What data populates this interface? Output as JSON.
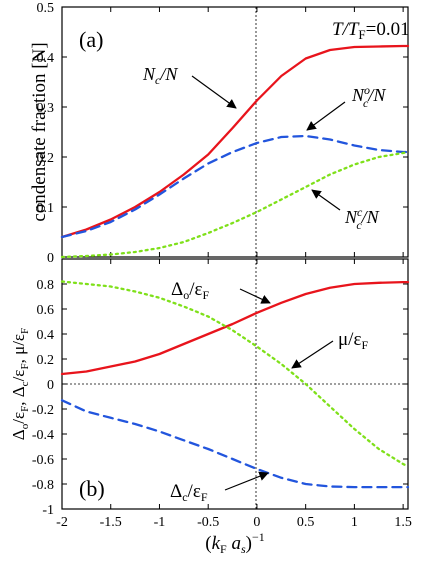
{
  "figure": {
    "xlabel": "(k_F a_s)^-1",
    "x_ticks": [
      "-2",
      "-1.5",
      "-1",
      "-0.5",
      "0",
      "0.5",
      "1",
      "1.5"
    ]
  },
  "chart_data": [
    {
      "type": "line",
      "panel_label": "(a)",
      "annotation": "T/T_F=0.01",
      "ylabel": "condensate fraction [N]",
      "xlim": [
        -2,
        1.55
      ],
      "ylim": [
        0,
        0.5
      ],
      "y_ticks": [
        "0",
        "0.1",
        "0.2",
        "0.3",
        "0.4",
        "0.5"
      ],
      "grid": false,
      "series": [
        {
          "name": "N_c/N",
          "color": "#e8141c",
          "dash": "solid",
          "x": [
            -2,
            -1.75,
            -1.5,
            -1.25,
            -1,
            -0.75,
            -0.5,
            -0.25,
            0,
            0.25,
            0.5,
            0.75,
            1,
            1.25,
            1.5,
            1.55
          ],
          "y": [
            0.04,
            0.055,
            0.075,
            0.1,
            0.13,
            0.165,
            0.205,
            0.258,
            0.313,
            0.362,
            0.397,
            0.414,
            0.42,
            0.421,
            0.422,
            0.422
          ]
        },
        {
          "name": "N_c^o/N",
          "color": "#2255dd",
          "dash": "dashed",
          "x": [
            -2,
            -1.75,
            -1.5,
            -1.25,
            -1,
            -0.75,
            -0.5,
            -0.25,
            0,
            0.25,
            0.5,
            0.75,
            1,
            1.25,
            1.5,
            1.55
          ],
          "y": [
            0.04,
            0.052,
            0.07,
            0.095,
            0.125,
            0.157,
            0.187,
            0.21,
            0.228,
            0.24,
            0.242,
            0.235,
            0.223,
            0.214,
            0.21,
            0.21
          ]
        },
        {
          "name": "N_c^c/N",
          "color": "#7fe01a",
          "dash": "dotted",
          "x": [
            -2,
            -1.75,
            -1.5,
            -1.25,
            -1,
            -0.75,
            -0.5,
            -0.25,
            0,
            0.25,
            0.5,
            0.75,
            1,
            1.25,
            1.5,
            1.55
          ],
          "y": [
            0,
            0.002,
            0.005,
            0.01,
            0.018,
            0.03,
            0.048,
            0.068,
            0.09,
            0.115,
            0.14,
            0.165,
            0.185,
            0.2,
            0.208,
            0.21
          ]
        }
      ],
      "labels": {
        "nc": "N_c/N",
        "nco": "N_c^o/N",
        "ncc": "N_c^c/N"
      }
    },
    {
      "type": "line",
      "panel_label": "(b)",
      "ylabel": "Δ_o/ε_F, Δ_c/ε_F, μ/ε_F",
      "xlim": [
        -2,
        1.55
      ],
      "ylim": [
        -1,
        1
      ],
      "y_ticks": [
        "-1",
        "-0.8",
        "-0.6",
        "-0.4",
        "-0.2",
        "0",
        "0.2",
        "0.4",
        "0.6",
        "0.8"
      ],
      "grid": false,
      "series": [
        {
          "name": "Δ_o/ε_F",
          "color": "#e8141c",
          "dash": "solid",
          "x": [
            -2,
            -1.75,
            -1.5,
            -1.25,
            -1,
            -0.75,
            -0.5,
            -0.25,
            0,
            0.25,
            0.5,
            0.75,
            1,
            1.25,
            1.5,
            1.55
          ],
          "y": [
            0.08,
            0.1,
            0.14,
            0.18,
            0.24,
            0.32,
            0.4,
            0.48,
            0.57,
            0.65,
            0.72,
            0.77,
            0.8,
            0.81,
            0.815,
            0.815
          ]
        },
        {
          "name": "μ/ε_F",
          "color": "#7fe01a",
          "dash": "dotted",
          "x": [
            -2,
            -1.75,
            -1.5,
            -1.25,
            -1,
            -0.75,
            -0.5,
            -0.25,
            0,
            0.25,
            0.5,
            0.75,
            1,
            1.25,
            1.5,
            1.55
          ],
          "y": [
            0.82,
            0.8,
            0.78,
            0.74,
            0.69,
            0.62,
            0.54,
            0.43,
            0.3,
            0.16,
            0.0,
            -0.18,
            -0.36,
            -0.52,
            -0.64,
            -0.66
          ]
        },
        {
          "name": "Δ_c/ε_F",
          "color": "#2255dd",
          "dash": "dashed",
          "x": [
            -2,
            -1.75,
            -1.5,
            -1.25,
            -1,
            -0.75,
            -0.5,
            -0.25,
            0,
            0.25,
            0.5,
            0.75,
            1,
            1.25,
            1.5,
            1.55
          ],
          "y": [
            -0.13,
            -0.22,
            -0.27,
            -0.32,
            -0.38,
            -0.45,
            -0.52,
            -0.6,
            -0.68,
            -0.75,
            -0.8,
            -0.82,
            -0.825,
            -0.825,
            -0.825,
            -0.825
          ]
        }
      ],
      "labels": {
        "do": "Δ_o/ε_F",
        "mu": "μ/ε_F",
        "dc": "Δ_c/ε_F"
      }
    }
  ]
}
